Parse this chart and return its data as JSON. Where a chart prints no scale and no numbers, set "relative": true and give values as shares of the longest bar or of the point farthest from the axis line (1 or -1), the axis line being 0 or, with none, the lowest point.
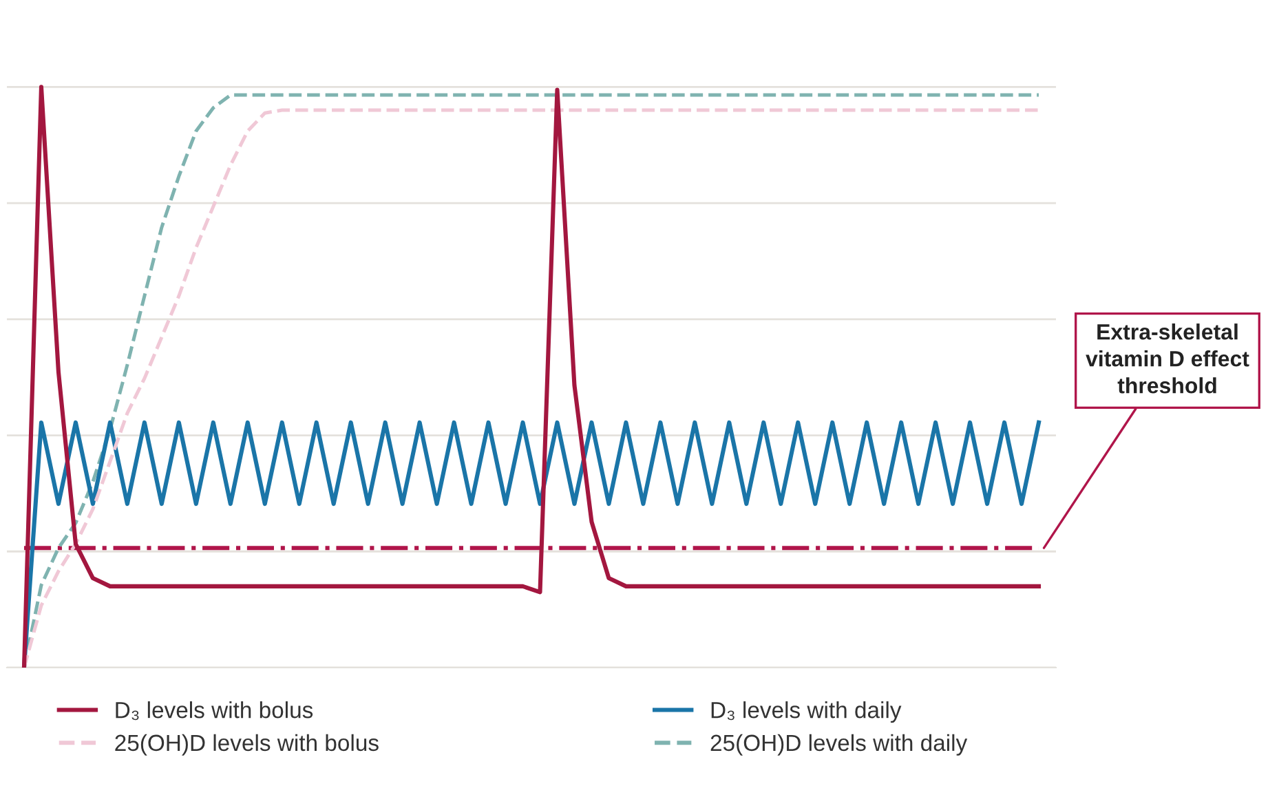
{
  "chart_data": {
    "type": "line",
    "relative": true,
    "grid": "y",
    "legend": "bottom",
    "categories": [
      null,
      null,
      null,
      null,
      null,
      null,
      null,
      null,
      null,
      null,
      null,
      null,
      null,
      null,
      null,
      null,
      null,
      null,
      null,
      null,
      null,
      null,
      null,
      null,
      null,
      null,
      null,
      null,
      null,
      null,
      null,
      null,
      null,
      null,
      null,
      null,
      null,
      null,
      null,
      null,
      null,
      null,
      null,
      null,
      null,
      null,
      null,
      null,
      null,
      null,
      null,
      null,
      null,
      null,
      null,
      null,
      null,
      null,
      null,
      null
    ],
    "series": [
      {
        "name": "D₃ levels with bolus",
        "color": "#a3173f",
        "line_style": "solid",
        "values": [
          0,
          1,
          0.509,
          0.213,
          0.154,
          0.14,
          0.14,
          0.14,
          0.14,
          0.14,
          0.14,
          0.14,
          0.14,
          0.14,
          0.14,
          0.14,
          0.14,
          0.14,
          0.14,
          0.14,
          0.14,
          0.14,
          0.14,
          0.14,
          0.14,
          0.14,
          0.14,
          0.14,
          0.14,
          0.14,
          0.13,
          0.995,
          0.486,
          0.251,
          0.154,
          0.14,
          0.14,
          0.14,
          0.14,
          0.14,
          0.14,
          0.14,
          0.14,
          0.14,
          0.14,
          0.14,
          0.14,
          0.14,
          0.14,
          0.14,
          0.14,
          0.14,
          0.14,
          0.14,
          0.14,
          0.14,
          0.14,
          0.14,
          0.14,
          0.14
        ]
      },
      {
        "name": "25(OH)D levels with bolus",
        "color": "#f0c8d6",
        "line_style": "dashed",
        "values": [
          0,
          0.107,
          0.166,
          0.213,
          0.273,
          0.355,
          0.438,
          0.498,
          0.569,
          0.64,
          0.723,
          0.794,
          0.865,
          0.924,
          0.955,
          0.96,
          0.96,
          0.96,
          0.96,
          0.96,
          0.96,
          0.96,
          0.96,
          0.96,
          0.96,
          0.96,
          0.96,
          0.96,
          0.96,
          0.96,
          0.96,
          0.96,
          0.96,
          0.96,
          0.96,
          0.96,
          0.96,
          0.96,
          0.96,
          0.96,
          0.96,
          0.96,
          0.96,
          0.96,
          0.96,
          0.96,
          0.96,
          0.96,
          0.96,
          0.96,
          0.96,
          0.96,
          0.96,
          0.96,
          0.96,
          0.96,
          0.96,
          0.96,
          0.96,
          0.96
        ]
      },
      {
        "name": "D₃ levels with daily",
        "color": "#1a75a8",
        "line_style": "solid",
        "values": [
          0,
          0.422,
          0.282,
          0.422,
          0.282,
          0.422,
          0.282,
          0.422,
          0.282,
          0.422,
          0.282,
          0.422,
          0.282,
          0.422,
          0.282,
          0.422,
          0.282,
          0.422,
          0.282,
          0.422,
          0.282,
          0.422,
          0.282,
          0.422,
          0.282,
          0.422,
          0.282,
          0.422,
          0.282,
          0.422,
          0.282,
          0.422,
          0.282,
          0.422,
          0.282,
          0.422,
          0.282,
          0.422,
          0.282,
          0.422,
          0.282,
          0.422,
          0.282,
          0.422,
          0.282,
          0.422,
          0.282,
          0.422,
          0.282,
          0.422,
          0.282,
          0.422,
          0.282,
          0.422,
          0.282,
          0.422,
          0.282,
          0.422,
          0.282,
          0.422
        ]
      },
      {
        "name": "25(OH)D levels with daily",
        "color": "#7fb3b0",
        "line_style": "dashed",
        "values": [
          0,
          0.142,
          0.206,
          0.249,
          0.32,
          0.41,
          0.521,
          0.64,
          0.758,
          0.846,
          0.924,
          0.964,
          0.986,
          0.986,
          0.986,
          0.986,
          0.986,
          0.986,
          0.986,
          0.986,
          0.986,
          0.986,
          0.986,
          0.986,
          0.986,
          0.986,
          0.986,
          0.986,
          0.986,
          0.986,
          0.986,
          0.986,
          0.986,
          0.986,
          0.986,
          0.986,
          0.986,
          0.986,
          0.986,
          0.986,
          0.986,
          0.986,
          0.986,
          0.986,
          0.986,
          0.986,
          0.986,
          0.986,
          0.986,
          0.986,
          0.986,
          0.986,
          0.986,
          0.986,
          0.986,
          0.986,
          0.986,
          0.986,
          0.986,
          0.986
        ]
      }
    ],
    "ref_lines": [
      {
        "axis": "y",
        "value": 0.206,
        "label": "Extra-skeletal\nvitamin D effect\nthreshold",
        "color": "#b0154a",
        "line_style": "dashdot"
      }
    ]
  }
}
